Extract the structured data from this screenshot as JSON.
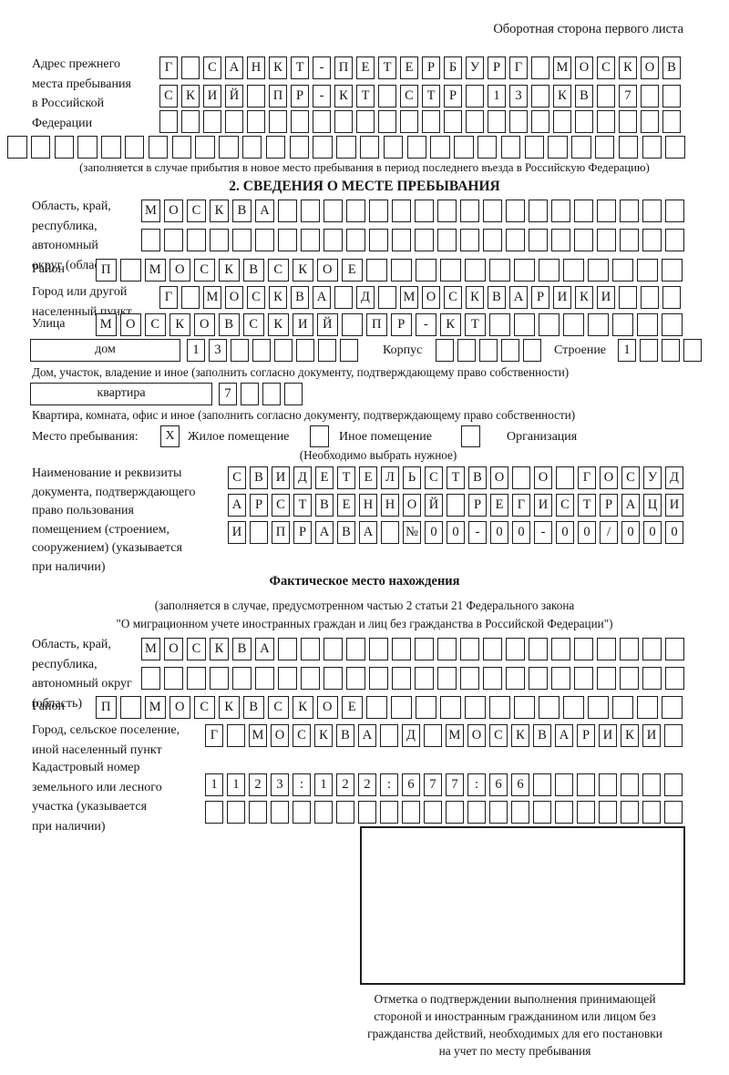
{
  "page": {
    "header_note": "Оборотная сторона первого листа"
  },
  "previous_address": {
    "label": "Адрес прежнего\nместа пребывания\nв Российской\nФедерации",
    "rows": [
      [
        "Г",
        "",
        "С",
        "А",
        "Н",
        "К",
        "Т",
        "-",
        "П",
        "Е",
        "Т",
        "Е",
        "Р",
        "Б",
        "У",
        "Р",
        "Г",
        "",
        "М",
        "О",
        "С",
        "К",
        "О",
        "В"
      ],
      [
        "С",
        "К",
        "И",
        "Й",
        "",
        "П",
        "Р",
        "-",
        "К",
        "Т",
        "",
        "С",
        "Т",
        "Р",
        "",
        "1",
        "3",
        "",
        "К",
        "В",
        "",
        "7",
        "",
        ""
      ],
      [
        "",
        "",
        "",
        "",
        "",
        "",
        "",
        "",
        "",
        "",
        "",
        "",
        "",
        "",
        "",
        "",
        "",
        "",
        "",
        "",
        "",
        "",
        "",
        ""
      ],
      [
        "",
        "",
        "",
        "",
        "",
        "",
        "",
        "",
        "",
        "",
        "",
        "",
        "",
        "",
        "",
        "",
        "",
        "",
        "",
        "",
        "",
        "",
        "",
        "",
        "",
        "",
        "",
        "",
        ""
      ]
    ],
    "note": "(заполняется в случае прибытия в новое место пребывания в период последнего въезда в Российскую Федерацию)"
  },
  "section2": {
    "title": "2. СВЕДЕНИЯ О МЕСТЕ ПРЕБЫВАНИЯ",
    "region": {
      "label": "Область, край,\nреспублика,\nавтономный\nокруг (область)",
      "rows": [
        [
          "М",
          "О",
          "С",
          "К",
          "В",
          "А",
          "",
          "",
          "",
          "",
          "",
          "",
          "",
          "",
          "",
          "",
          "",
          "",
          "",
          "",
          "",
          "",
          "",
          ""
        ],
        [
          "",
          "",
          "",
          "",
          "",
          "",
          "",
          "",
          "",
          "",
          "",
          "",
          "",
          "",
          "",
          "",
          "",
          "",
          "",
          "",
          "",
          "",
          "",
          ""
        ]
      ]
    },
    "district": {
      "label": "Район",
      "row": [
        "П",
        "",
        "М",
        "О",
        "С",
        "К",
        "В",
        "С",
        "К",
        "О",
        "Е",
        "",
        "",
        "",
        "",
        "",
        "",
        "",
        "",
        "",
        "",
        "",
        "",
        ""
      ]
    },
    "city": {
      "label": "Город или другой\nнаселенный пункт",
      "row": [
        "Г",
        "",
        "М",
        "О",
        "С",
        "К",
        "В",
        "А",
        "",
        "Д",
        "",
        "М",
        "О",
        "С",
        "К",
        "В",
        "А",
        "Р",
        "И",
        "К",
        "И",
        "",
        "",
        ""
      ]
    },
    "street": {
      "label": "Улица",
      "row": [
        "М",
        "О",
        "С",
        "К",
        "О",
        "В",
        "С",
        "К",
        "И",
        "Й",
        "",
        "П",
        "Р",
        "-",
        "К",
        "Т",
        "",
        "",
        "",
        "",
        "",
        "",
        "",
        ""
      ]
    },
    "house": {
      "box_label": "дом",
      "cells": [
        "1",
        "3",
        "",
        "",
        "",
        "",
        "",
        ""
      ],
      "korpus_label": "Корпус",
      "korpus_cells": [
        "",
        "",
        "",
        "",
        ""
      ],
      "stroenie_label": "Строение",
      "stroenie_cells": [
        "1",
        "",
        "",
        ""
      ]
    },
    "house_caption": "Дом, участок, владение и иное (заполнить согласно документу, подтверждающему право собственности)",
    "apartment": {
      "box_label": "квартира",
      "cells": [
        "7",
        "",
        "",
        ""
      ]
    },
    "apartment_caption": "Квартира, комната, офис и иное (заполнить согласно документу, подтверждающему право собственности)",
    "stay_type": {
      "label": "Место пребывания:",
      "options": [
        {
          "label": "Жилое помещение",
          "mark": "X"
        },
        {
          "label": "Иное помещение",
          "mark": ""
        },
        {
          "label": "Организация",
          "mark": ""
        }
      ],
      "note": "(Необходимо выбрать нужное)"
    },
    "document": {
      "label": "Наименование и реквизиты\nдокумента, подтверждающего\nправо пользования\nпомещением (строением,\nсооружением) (указывается\nпри наличии)",
      "rows": [
        [
          "С",
          "В",
          "И",
          "Д",
          "Е",
          "Т",
          "Е",
          "Л",
          "Ь",
          "С",
          "Т",
          "В",
          "О",
          "",
          "О",
          "",
          "Г",
          "О",
          "С",
          "У",
          "Д"
        ],
        [
          "А",
          "Р",
          "С",
          "Т",
          "В",
          "Е",
          "Н",
          "Н",
          "О",
          "Й",
          "",
          "Р",
          "Е",
          "Г",
          "И",
          "С",
          "Т",
          "Р",
          "А",
          "Ц",
          "И"
        ],
        [
          "И",
          "",
          "П",
          "Р",
          "А",
          "В",
          "А",
          "",
          "№",
          "0",
          "0",
          "-",
          "0",
          "0",
          "-",
          "0",
          "0",
          "/",
          "0",
          "0",
          "0"
        ]
      ]
    }
  },
  "actual_location": {
    "title": "Фактическое место нахождения",
    "note_line1": "(заполняется в случае, предусмотренном частью 2 статьи 21 Федерального закона",
    "note_line2": "\"О миграционном учете иностранных граждан и лиц без гражданства в Российской Федерации\")",
    "region": {
      "label": "Область, край,\nреспублика,\nавтономный округ\n(область)",
      "rows": [
        [
          "М",
          "О",
          "С",
          "К",
          "В",
          "А",
          "",
          "",
          "",
          "",
          "",
          "",
          "",
          "",
          "",
          "",
          "",
          "",
          "",
          "",
          "",
          "",
          "",
          ""
        ],
        [
          "",
          "",
          "",
          "",
          "",
          "",
          "",
          "",
          "",
          "",
          "",
          "",
          "",
          "",
          "",
          "",
          "",
          "",
          "",
          "",
          "",
          "",
          "",
          ""
        ]
      ]
    },
    "district": {
      "label": "Район",
      "row": [
        "П",
        "",
        "М",
        "О",
        "С",
        "К",
        "В",
        "С",
        "К",
        "О",
        "Е",
        "",
        "",
        "",
        "",
        "",
        "",
        "",
        "",
        "",
        "",
        "",
        "",
        ""
      ]
    },
    "city": {
      "label": "Город, сельское поселение,\nиной населенный пункт",
      "row": [
        "Г",
        "",
        "М",
        "О",
        "С",
        "К",
        "В",
        "А",
        "",
        "Д",
        "",
        "М",
        "О",
        "С",
        "К",
        "В",
        "А",
        "Р",
        "И",
        "К",
        "И",
        ""
      ]
    },
    "cadastral": {
      "label": "Кадастровый номер\nземельного или лесного\nучастка (указывается\nпри наличии)",
      "rows": [
        [
          "1",
          "1",
          "2",
          "3",
          ":",
          "1",
          "2",
          "2",
          ":",
          "6",
          "7",
          "7",
          ":",
          "6",
          "6",
          "",
          "",
          "",
          "",
          "",
          "",
          ""
        ],
        [
          "",
          "",
          "",
          "",
          "",
          "",
          "",
          "",
          "",
          "",
          "",
          "",
          "",
          "",
          "",
          "",
          "",
          "",
          "",
          "",
          "",
          ""
        ]
      ]
    },
    "stamp_caption": "Отметка о подтверждении выполнения принимающей\nстороной и иностранным гражданином или лицом без\nгражданства действий, необходимых для его постановки\nна учет по месту пребывания"
  }
}
